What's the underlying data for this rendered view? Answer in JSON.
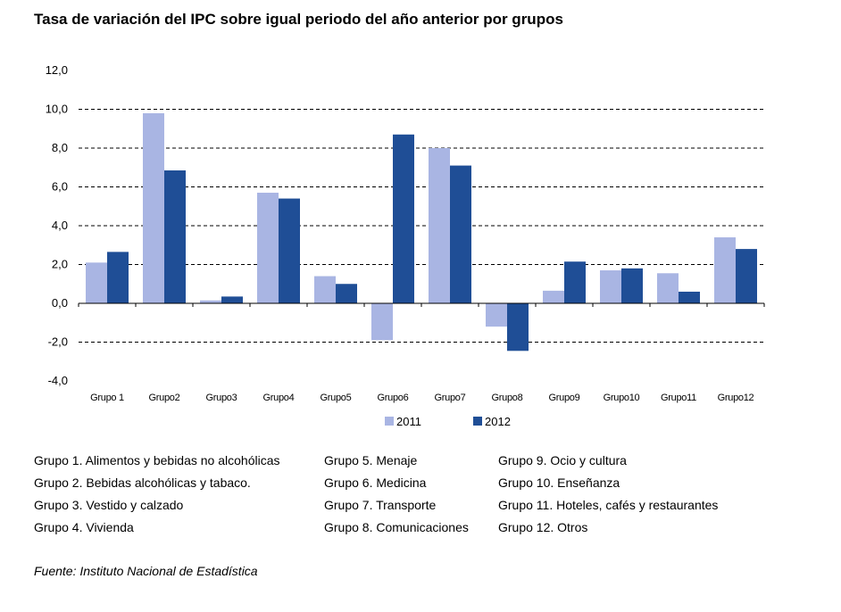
{
  "title": "Tasa de variación del IPC sobre igual periodo del año anterior por grupos",
  "chart_data": {
    "type": "bar",
    "categories": [
      "Grupo 1",
      "Grupo2",
      "Grupo3",
      "Grupo4",
      "Grupo5",
      "Grupo6",
      "Grupo7",
      "Grupo8",
      "Grupo9",
      "Grupo10",
      "Grupo11",
      "Grupo12"
    ],
    "series": [
      {
        "name": "2011",
        "color": "#a9b5e3",
        "values": [
          2.1,
          9.8,
          0.15,
          5.7,
          1.4,
          -1.9,
          8.0,
          -1.2,
          0.65,
          1.7,
          1.55,
          3.4
        ]
      },
      {
        "name": "2012",
        "color": "#1f4e96",
        "values": [
          2.65,
          6.85,
          0.35,
          5.4,
          1.0,
          8.7,
          7.1,
          -2.45,
          2.15,
          1.8,
          0.6,
          2.8
        ]
      }
    ],
    "yticks": [
      "12,0",
      "10,0",
      "8,0",
      "6,0",
      "4,0",
      "2,0",
      "0,0",
      "-2,0",
      "-4,0"
    ],
    "ylim": [
      -4,
      12
    ],
    "grid": "dashed horizontal",
    "legend": "bottom"
  },
  "notes": [
    [
      "Grupo 1. Alimentos y bebidas no alcohólicas",
      "Grupo 2. Bebidas alcohólicas y  tabaco.",
      "Grupo 3. Vestido y calzado",
      "Grupo 4. Vivienda"
    ],
    [
      "Grupo 5. Menaje",
      "Grupo 6. Medicina",
      "Grupo 7. Transporte",
      "Grupo 8. Comunicaciones"
    ],
    [
      "Grupo 9. Ocio y cultura",
      "Grupo 10. Enseñanza",
      "Grupo 11. Hoteles, cafés y restaurantes",
      "Grupo 12. Otros"
    ]
  ],
  "source": "Fuente: Instituto Nacional de Estadística"
}
